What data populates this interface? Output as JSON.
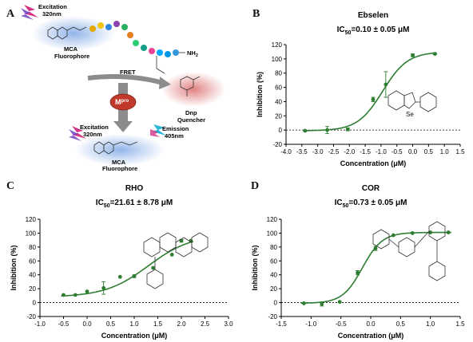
{
  "panels": {
    "A": "A",
    "B": "B",
    "C": "C",
    "D": "D"
  },
  "schematic": {
    "excitation_top": "Excitation",
    "excitation_top_nm": "320nm",
    "mca_top_1": "MCA",
    "mca_top_2": "Fluorophore",
    "fret": "FRET",
    "dnp_1": "Dnp",
    "dnp_2": "Quencher",
    "mpro_main": "M",
    "mpro_sup": "pro",
    "nh2": "NH",
    "nh2_sub": "2",
    "excitation_bottom": "Excitation",
    "excitation_bottom_nm": "320nm",
    "emission": "Emission",
    "emission_nm": "405nm",
    "mca_bottom_1": "MCA",
    "mca_bottom_2": "Fluorophore",
    "colors": {
      "mca_glow": "#7fa8e6",
      "dnp_glow": "#e07b7b",
      "arrow_grey": "#8c8c8c",
      "mpro_fill": "#c0392b",
      "lightning_pink": "#d63384",
      "lightning_purple": "#6f42c1",
      "emission_cyan": "#29b6d8"
    }
  },
  "chart_data": [
    {
      "panel": "B",
      "type": "scatter",
      "title": "Ebselen",
      "ic50_prefix": "IC",
      "ic50_sub": "50",
      "ic50_value": "=0.10 ± 0.05 μM",
      "xlabel": "Concentration (μM)",
      "ylabel": "Inhibition (%)",
      "xlim": [
        -4.0,
        1.5
      ],
      "ylim": [
        -20,
        120
      ],
      "xticks": [
        -4.0,
        -3.5,
        -3.0,
        -2.5,
        -2.0,
        -1.5,
        -1.0,
        -0.5,
        0.0,
        0.5,
        1.0,
        1.5
      ],
      "xtick_labels": [
        "-4.0",
        "-3.5",
        "-3.0",
        "-2.5",
        "-2.0",
        "-1.5",
        "-1.0",
        "-0.5",
        "0.0",
        "0.5",
        "1.0",
        "1.5"
      ],
      "yticks": [
        -20,
        0,
        20,
        40,
        60,
        80,
        100,
        120
      ],
      "x": [
        -3.4,
        -2.7,
        -2.05,
        -1.25,
        -0.85,
        0.0,
        0.7
      ],
      "y": [
        -1,
        0,
        1,
        43,
        64,
        105,
        107
      ],
      "err": [
        1,
        5,
        2,
        3,
        18,
        2,
        1
      ],
      "fit": {
        "bottom": -1,
        "top": 110,
        "logEC50": -0.95,
        "hill": 1.1
      },
      "structure_label": "Se",
      "color": "#2e7d32"
    },
    {
      "panel": "C",
      "type": "scatter",
      "title": "RHO",
      "ic50_prefix": "IC",
      "ic50_sub": "50",
      "ic50_value": "=21.61 ± 8.78 μM",
      "xlabel": "Concentration (μM)",
      "ylabel": "Inhibition (%)",
      "xlim": [
        -1.0,
        3.0
      ],
      "ylim": [
        -20,
        120
      ],
      "xticks": [
        -1.0,
        -0.5,
        0.0,
        0.5,
        1.0,
        1.5,
        2.0,
        2.5,
        3.0
      ],
      "xtick_labels": [
        "-1.0",
        "-0.5",
        "0.0",
        "0.5",
        "1.0",
        "1.5",
        "2.0",
        "2.5",
        "3.0"
      ],
      "yticks": [
        -20,
        0,
        20,
        40,
        60,
        80,
        100,
        120
      ],
      "x": [
        -0.5,
        -0.25,
        0.0,
        0.35,
        0.7,
        1.0,
        1.4,
        1.8,
        2.0,
        2.2
      ],
      "y": [
        11,
        11,
        16,
        21,
        37,
        38,
        50,
        69,
        89,
        89
      ],
      "err": [
        0,
        0,
        0,
        9,
        0,
        2,
        0,
        0,
        2,
        0
      ],
      "fit": {
        "bottom": 8,
        "top": 98,
        "logEC50": 1.3,
        "hill": 0.95
      },
      "color": "#2e7d32"
    },
    {
      "panel": "D",
      "type": "scatter",
      "title": "COR",
      "ic50_prefix": "IC",
      "ic50_sub": "50",
      "ic50_value": "=0.73 ± 0.05 μM",
      "xlabel": "Concentration (μM)",
      "ylabel": "Inhibition (%)",
      "xlim": [
        -1.5,
        1.5
      ],
      "ylim": [
        -20,
        120
      ],
      "xticks": [
        -1.5,
        -1.0,
        -0.5,
        0.0,
        0.5,
        1.0,
        1.5
      ],
      "xtick_labels": [
        "-1.5",
        "-1.0",
        "-0.5",
        "0.0",
        "0.5",
        "1.0",
        "1.5"
      ],
      "yticks": [
        -20,
        0,
        20,
        40,
        60,
        80,
        100,
        120
      ],
      "x": [
        -1.12,
        -0.82,
        -0.52,
        -0.22,
        0.08,
        0.38,
        0.7,
        1.0,
        1.3
      ],
      "y": [
        -1,
        -2,
        1,
        43,
        78,
        97,
        100,
        101,
        101
      ],
      "err": [
        0,
        3,
        0,
        3,
        3,
        0,
        0,
        0,
        0
      ],
      "fit": {
        "bottom": -1,
        "top": 101,
        "logEC50": -0.14,
        "hill": 2.6
      },
      "color": "#2e7d32"
    }
  ]
}
